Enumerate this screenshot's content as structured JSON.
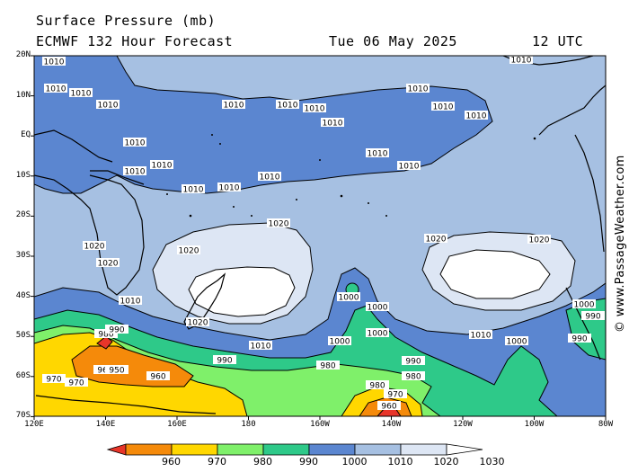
{
  "header": {
    "title": "Surface Pressure (mb)",
    "model": "ECMWF 132 Hour Forecast",
    "date": "Tue 06 May 2025",
    "time": "12 UTC"
  },
  "watermark": "© www.PassageWeather.com",
  "lat_labels": [
    "20N",
    "10N",
    "EQ",
    "10S",
    "20S",
    "30S",
    "40S",
    "50S",
    "60S",
    "70S"
  ],
  "lon_labels": [
    "120E",
    "140E",
    "160E",
    "180",
    "160W",
    "140W",
    "120W",
    "100W",
    "80W"
  ],
  "legend": {
    "values": [
      "960",
      "970",
      "980",
      "990",
      "1000",
      "1010",
      "1020",
      "1030"
    ],
    "colors": [
      "#e8352a",
      "#f58a0a",
      "#ffd700",
      "#7ff06a",
      "#2ec989",
      "#5b86d0",
      "#a6c0e2",
      "#dde6f4",
      "#ffffff"
    ]
  },
  "isobar_labels": [
    "1010",
    "1010",
    "1010",
    "1010",
    "1010",
    "1010",
    "1010",
    "1010",
    "1010",
    "1010",
    "1010",
    "1010",
    "1010",
    "1010",
    "1010",
    "1010",
    "1010",
    "1010",
    "1010",
    "1010",
    "1020",
    "1020",
    "1020",
    "1020",
    "1020",
    "1020",
    "1020",
    "1010",
    "1010",
    "1000",
    "1000",
    "1000",
    "1000",
    "1010",
    "1010",
    "1000",
    "1000",
    "990",
    "990",
    "980",
    "980",
    "960",
    "950",
    "960",
    "970",
    "970",
    "990",
    "980",
    "980",
    "970",
    "960",
    "990",
    "990"
  ]
}
